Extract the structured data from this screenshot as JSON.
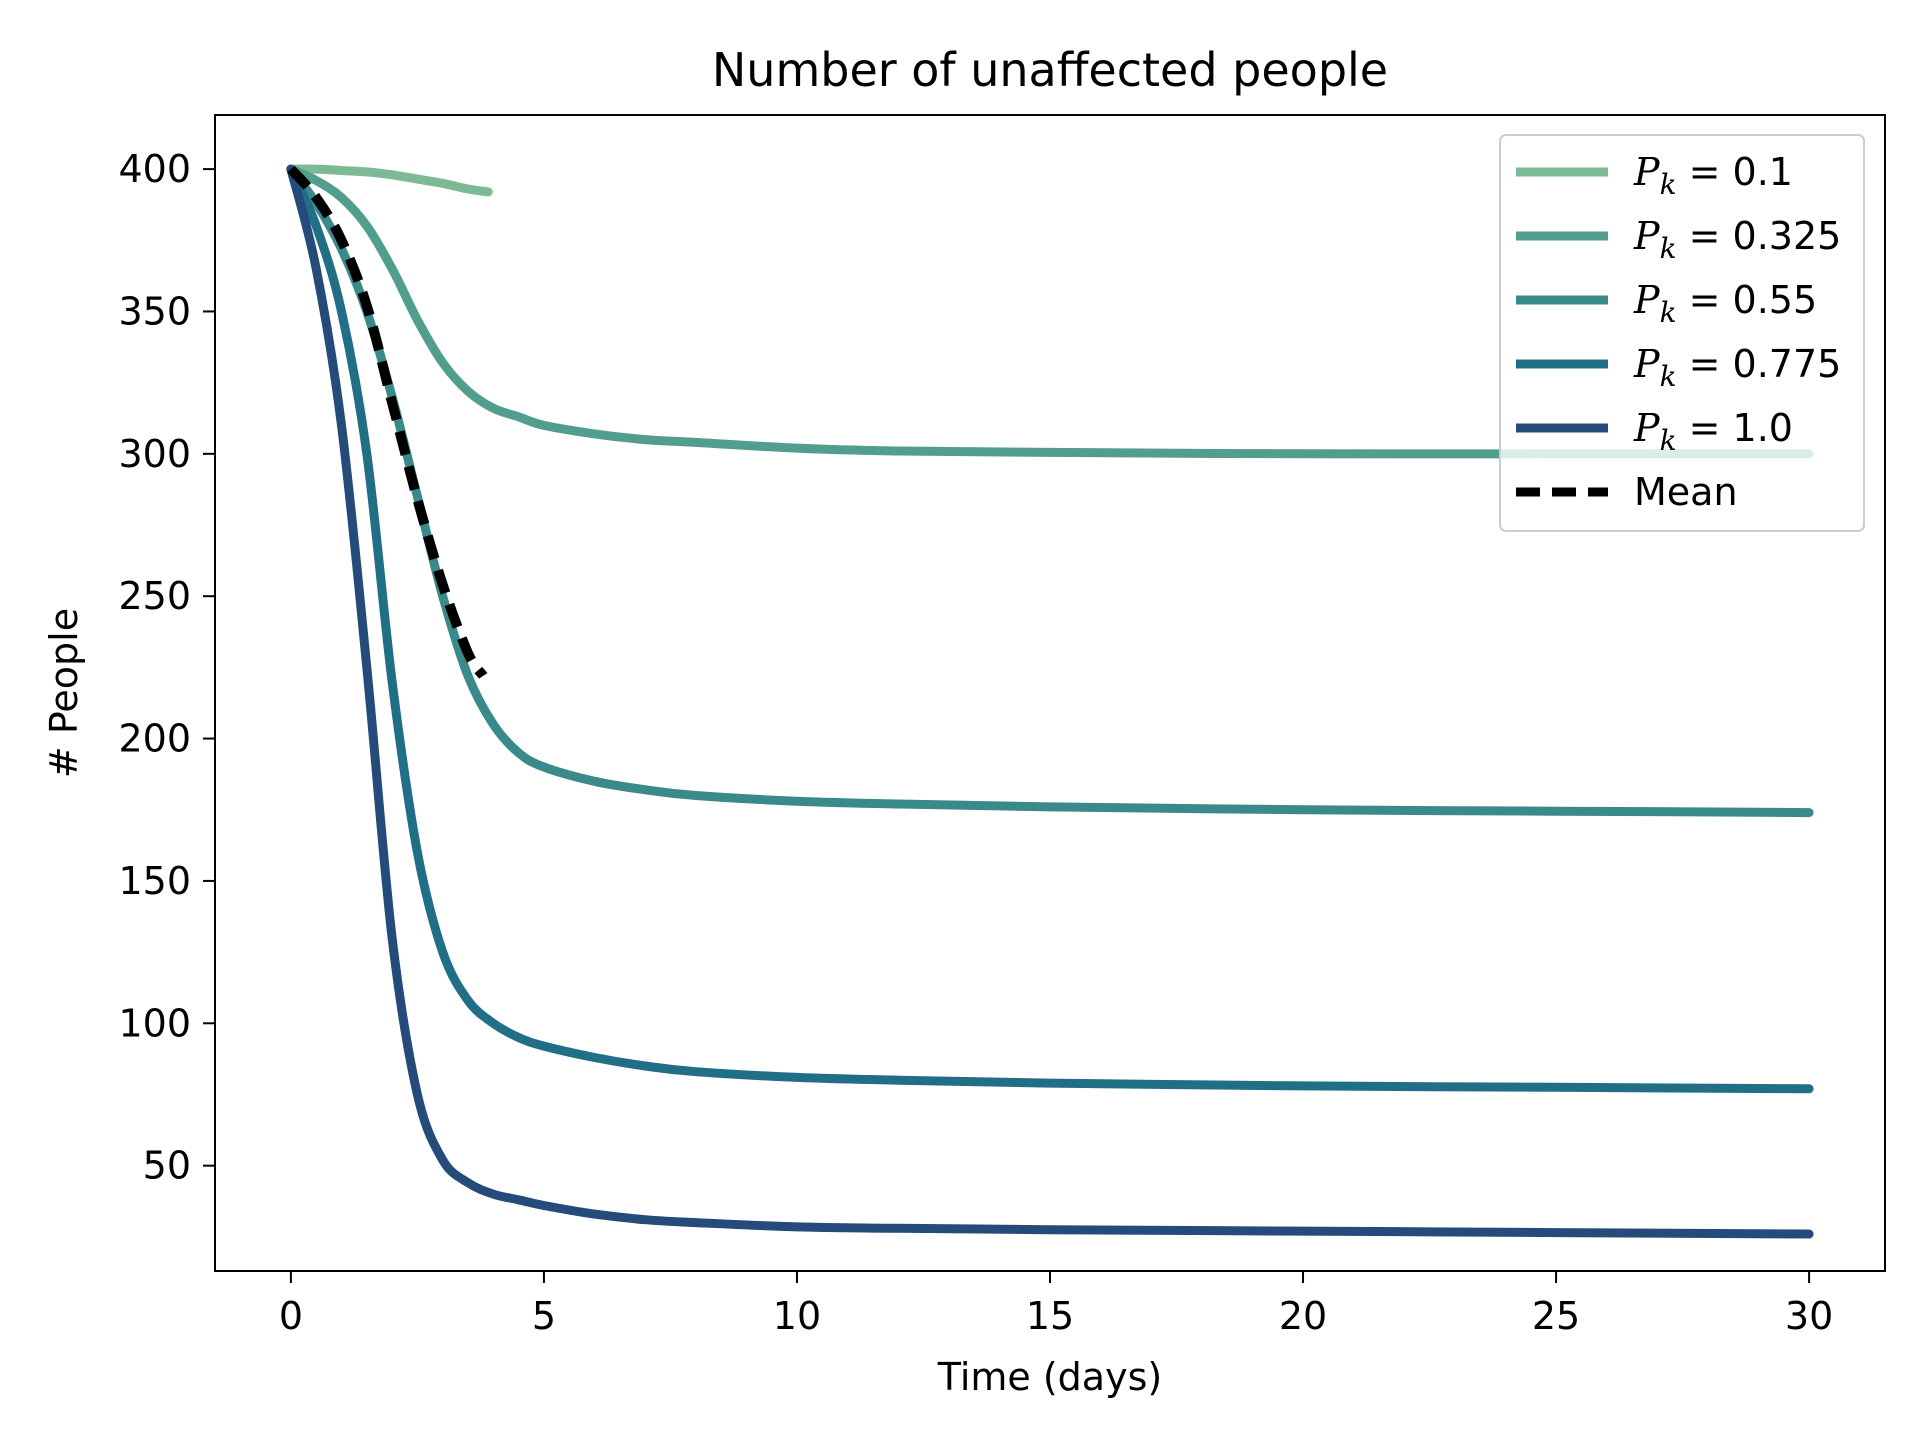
{
  "chart_data": {
    "type": "line",
    "title": "Number of unaffected people",
    "xlabel": "Time (days)",
    "ylabel": "# People",
    "xlim": [
      -1.5,
      31.5
    ],
    "ylim": [
      13,
      419
    ],
    "xticks": [
      0,
      5,
      10,
      15,
      20,
      25,
      30
    ],
    "yticks": [
      50,
      100,
      150,
      200,
      250,
      300,
      350,
      400
    ],
    "grid": false,
    "legend_position": "top-right",
    "series": [
      {
        "name": "P_k = 0.1",
        "label_main": "P",
        "label_sub": "k",
        "label_value": " = 0.1",
        "color": "#7cba96",
        "style": "solid",
        "x": [
          0,
          0.5,
          1,
          1.5,
          2,
          2.5,
          3,
          3.5,
          3.9
        ],
        "y": [
          400,
          400,
          399.5,
          399,
          398,
          396.5,
          395,
          393,
          392
        ]
      },
      {
        "name": "P_k = 0.325",
        "label_main": "P",
        "label_sub": "k",
        "label_value": " = 0.325",
        "color": "#529e8e",
        "style": "solid",
        "x": [
          0,
          0.5,
          1,
          1.5,
          2,
          2.5,
          3,
          3.5,
          4,
          4.5,
          5,
          6,
          7,
          8,
          10,
          12,
          15,
          20,
          25,
          30
        ],
        "y": [
          400,
          396,
          390,
          380,
          365,
          347,
          332,
          322,
          316,
          313,
          310,
          307,
          305,
          304,
          302,
          301,
          300.5,
          300,
          300,
          300
        ]
      },
      {
        "name": "P_k = 0.55",
        "label_main": "P",
        "label_sub": "k",
        "label_value": " = 0.55",
        "color": "#3b8a8b",
        "style": "solid",
        "x": [
          0,
          0.5,
          1,
          1.5,
          2,
          2.5,
          3,
          3.5,
          4,
          4.5,
          5,
          6,
          7,
          8,
          10,
          12,
          15,
          20,
          25,
          30
        ],
        "y": [
          400,
          388,
          372,
          350,
          320,
          285,
          250,
          222,
          205,
          195,
          190,
          185,
          182,
          180,
          178,
          177,
          176,
          175,
          174.5,
          174
        ]
      },
      {
        "name": "P_k = 0.775",
        "label_main": "P",
        "label_sub": "k",
        "label_value": " = 0.775",
        "color": "#206f86",
        "style": "solid",
        "x": [
          0,
          0.5,
          1,
          1.5,
          2,
          2.5,
          3,
          3.5,
          4,
          4.5,
          5,
          6,
          7,
          8,
          10,
          12,
          15,
          20,
          25,
          30
        ],
        "y": [
          400,
          380,
          350,
          300,
          220,
          160,
          125,
          108,
          100,
          95,
          92,
          88,
          85,
          83,
          81,
          80,
          79,
          78,
          77.5,
          77
        ]
      },
      {
        "name": "P_k = 1.0",
        "label_main": "P",
        "label_sub": "k",
        "label_value": " = 1.0",
        "color": "#254b7a",
        "style": "solid",
        "x": [
          0,
          0.5,
          1,
          1.5,
          2,
          2.5,
          3,
          3.5,
          4,
          4.5,
          5,
          6,
          7,
          8,
          10,
          12,
          15,
          20,
          25,
          30
        ],
        "y": [
          400,
          365,
          310,
          225,
          130,
          75,
          52,
          44,
          40,
          38,
          36,
          33,
          31,
          30,
          28.5,
          28,
          27.5,
          27,
          26.5,
          26
        ]
      },
      {
        "name": "Mean",
        "label_main": "",
        "label_sub": "",
        "label_value": "Mean",
        "color": "#000000",
        "style": "dashed",
        "x": [
          0,
          0.5,
          1,
          1.5,
          2,
          2.5,
          3,
          3.5,
          3.8
        ],
        "y": [
          400,
          390,
          375,
          352,
          318,
          284,
          254,
          230,
          222
        ]
      }
    ]
  }
}
